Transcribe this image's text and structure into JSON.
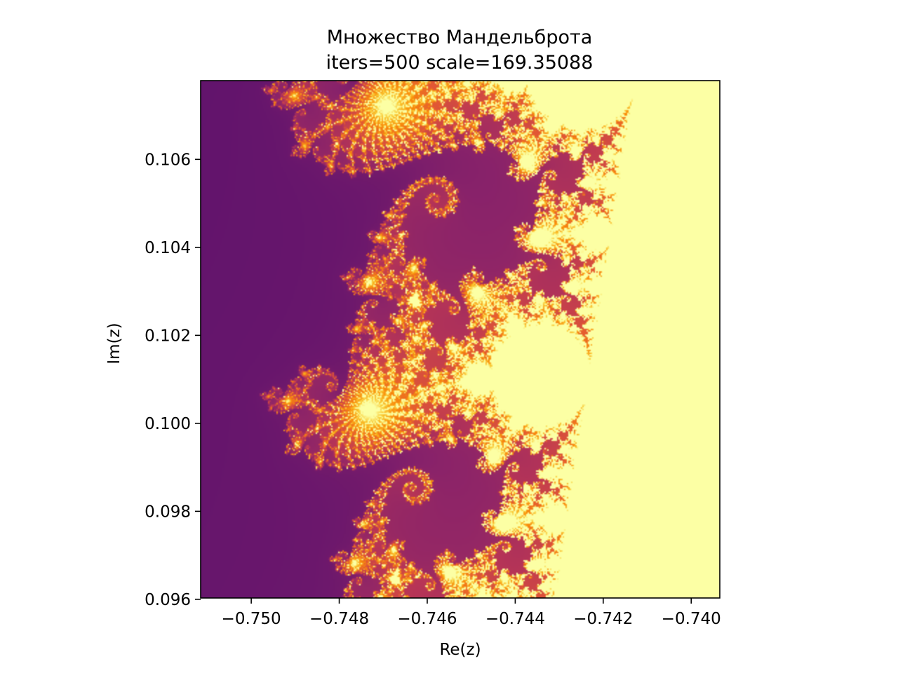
{
  "chart_data": {
    "type": "heatmap",
    "title": "Множество Мандельброта",
    "subtitle": "iters=500 scale=169.35088",
    "xlabel": "Re(z)",
    "ylabel": "Im(z)",
    "xlim": [
      -0.75115,
      -0.73935
    ],
    "ylim": [
      0.09603,
      0.10779
    ],
    "x_ticks": [
      {
        "value": -0.75,
        "label": "−0.750"
      },
      {
        "value": -0.748,
        "label": "−0.748"
      },
      {
        "value": -0.746,
        "label": "−0.746"
      },
      {
        "value": -0.744,
        "label": "−0.744"
      },
      {
        "value": -0.742,
        "label": "−0.742"
      },
      {
        "value": -0.74,
        "label": "−0.740"
      }
    ],
    "y_ticks": [
      {
        "value": 0.096,
        "label": "0.096"
      },
      {
        "value": 0.098,
        "label": "0.098"
      },
      {
        "value": 0.1,
        "label": "0.100"
      },
      {
        "value": 0.102,
        "label": "0.102"
      },
      {
        "value": 0.104,
        "label": "0.104"
      },
      {
        "value": 0.106,
        "label": "0.106"
      }
    ],
    "max_iterations": 500,
    "colormap": "inferno",
    "grid": false,
    "legend": "none"
  }
}
